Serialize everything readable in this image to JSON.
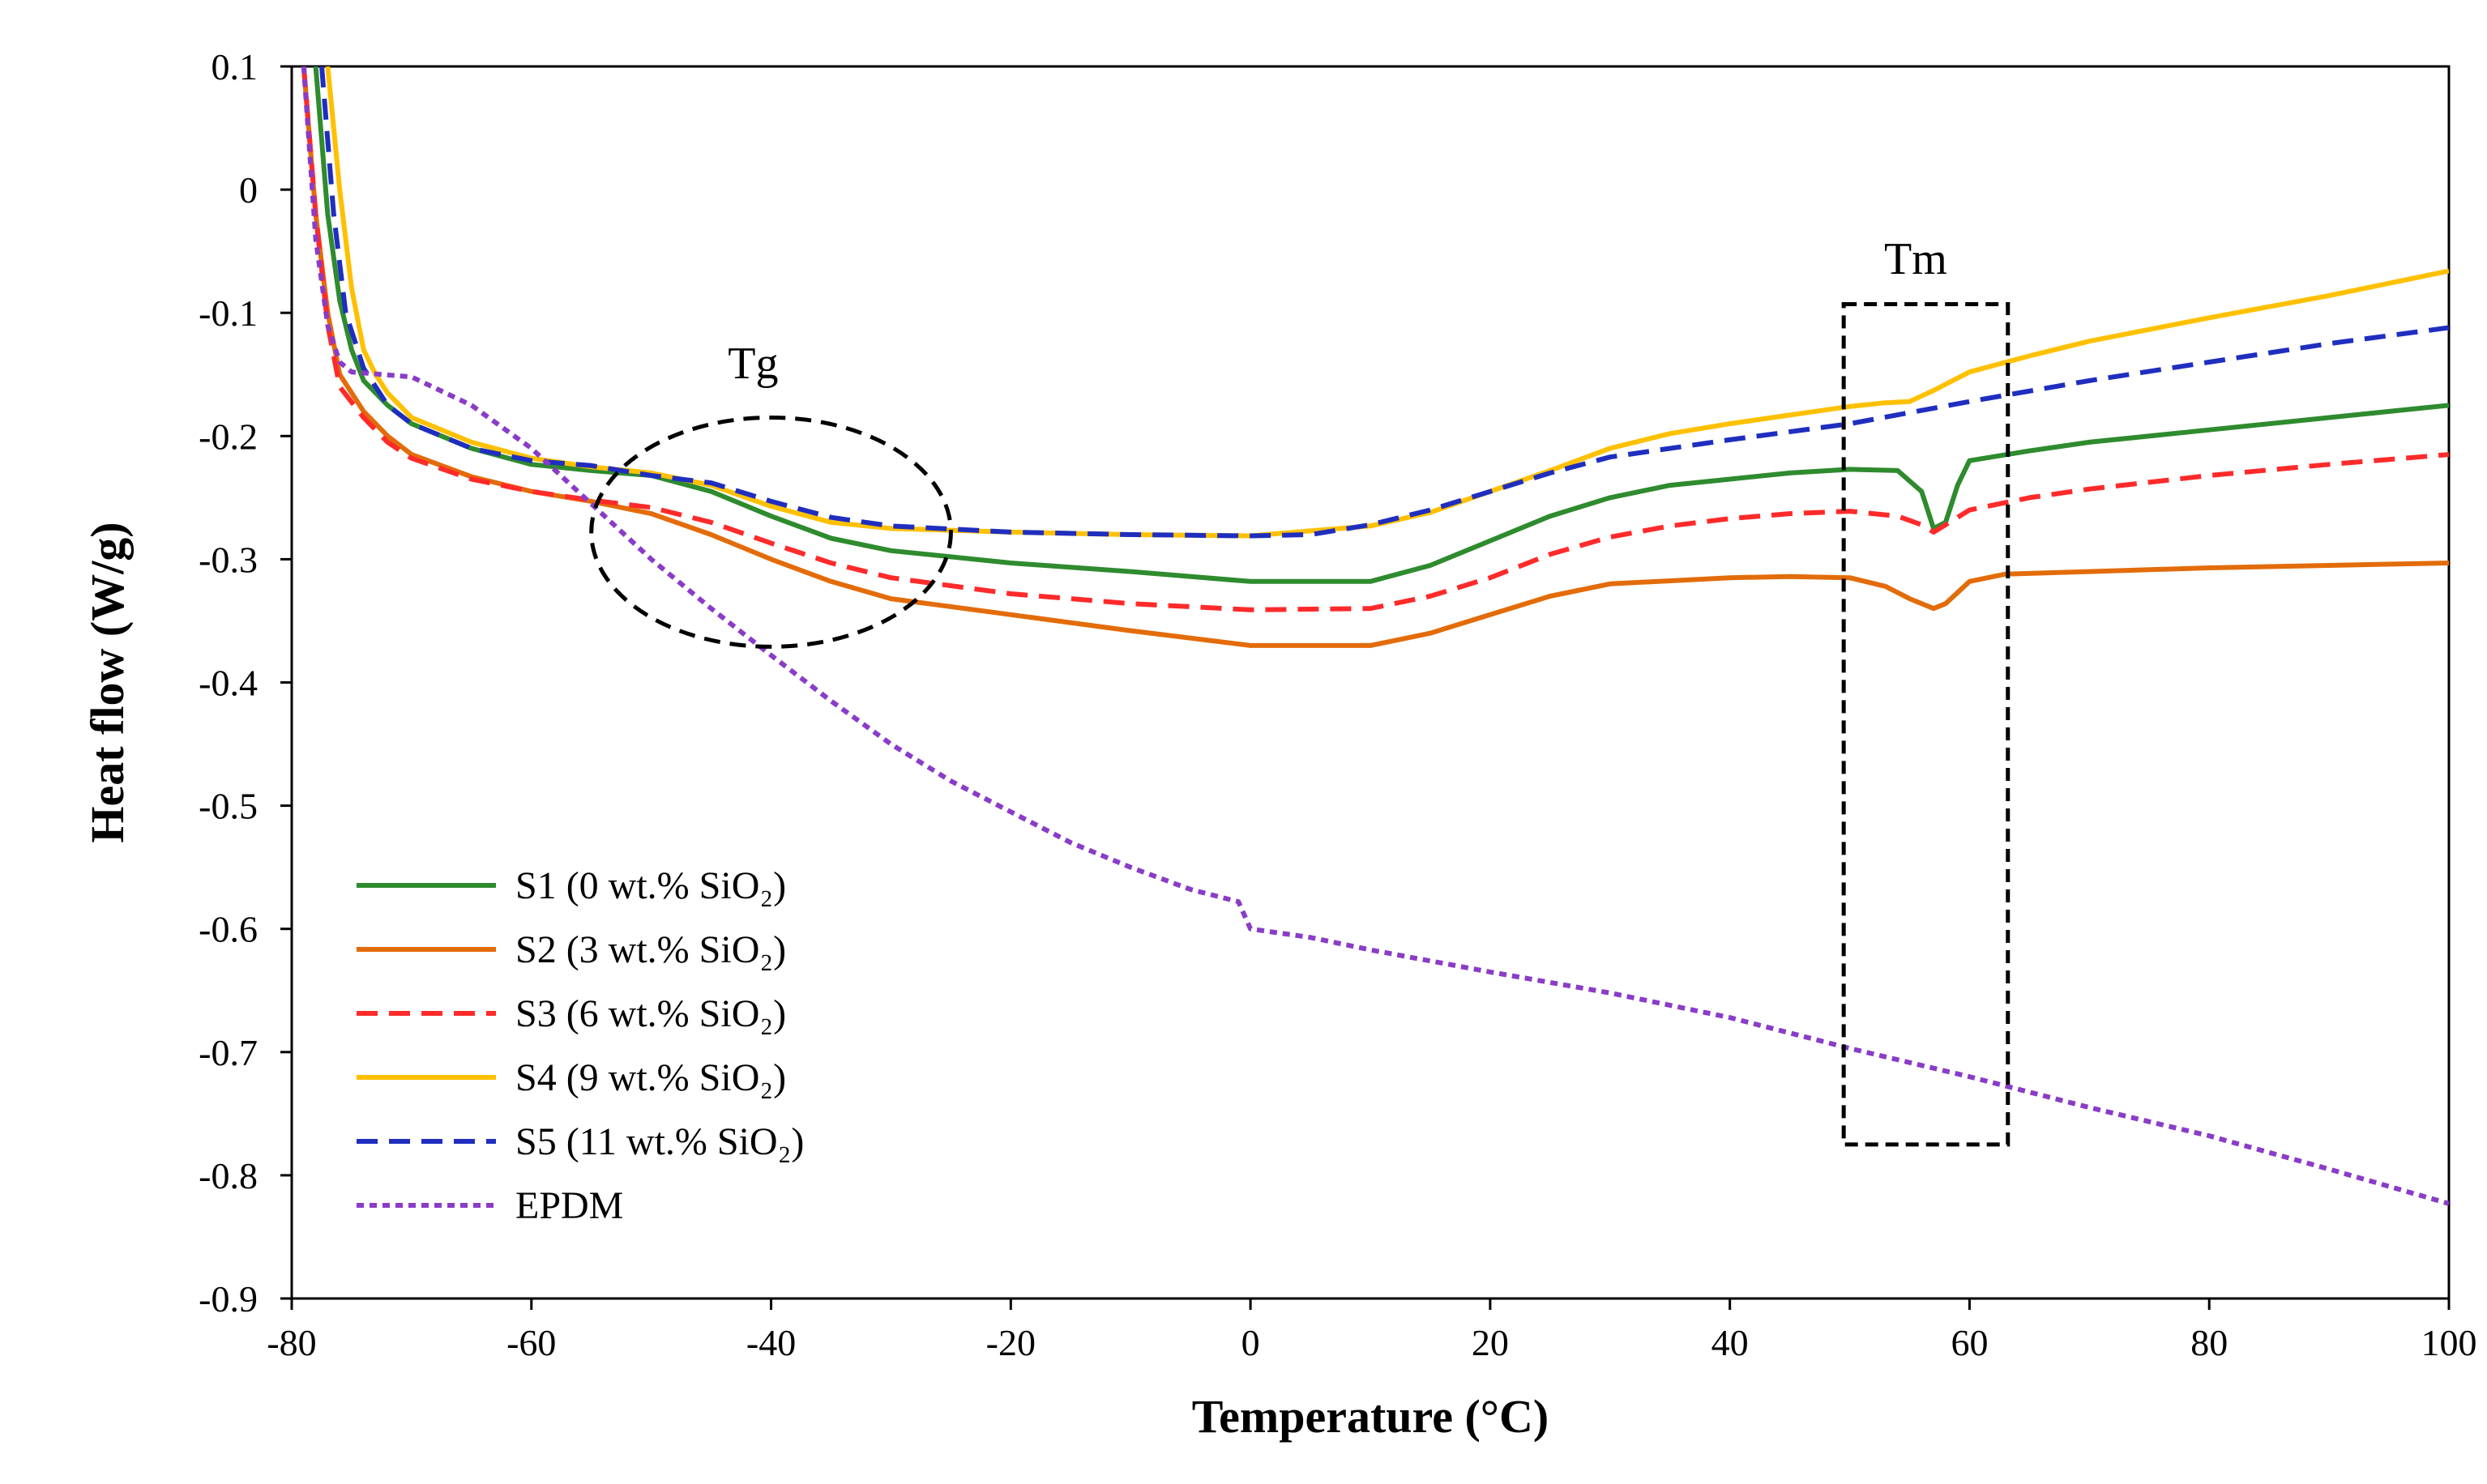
{
  "chart_data": {
    "type": "line",
    "title": "",
    "xlabel": "Temperature (°C)",
    "ylabel": "Heat flow (W/g)",
    "xlim": [
      -80,
      100
    ],
    "ylim": [
      -0.9,
      0.1
    ],
    "x_ticks": [
      -80,
      -60,
      -40,
      -20,
      0,
      20,
      40,
      60,
      80,
      100
    ],
    "y_ticks": [
      0.1,
      0,
      -0.1,
      -0.2,
      -0.3,
      -0.4,
      -0.5,
      -0.6,
      -0.7,
      -0.8,
      -0.9
    ],
    "x_tick_labels": [
      "-80",
      "-60",
      "-40",
      "-20",
      "0",
      "20",
      "40",
      "60",
      "80",
      "100"
    ],
    "y_tick_labels": [
      "0.1",
      "0",
      "-0.1",
      "-0.2",
      "-0.3",
      "-0.4",
      "-0.5",
      "-0.6",
      "-0.7",
      "-0.8",
      "-0.9"
    ],
    "grid": false,
    "legend_position": "bottom-left",
    "series": [
      {
        "name": "S1 (0 wt.% SiO₂)",
        "color": "#2e8b2e",
        "dash": "solid",
        "points": [
          [
            -78,
            0.1
          ],
          [
            -77,
            -0.02
          ],
          [
            -76,
            -0.09
          ],
          [
            -75,
            -0.13
          ],
          [
            -74,
            -0.155
          ],
          [
            -72,
            -0.175
          ],
          [
            -70,
            -0.19
          ],
          [
            -65,
            -0.21
          ],
          [
            -60,
            -0.223
          ],
          [
            -55,
            -0.228
          ],
          [
            -50,
            -0.232
          ],
          [
            -45,
            -0.245
          ],
          [
            -40,
            -0.265
          ],
          [
            -35,
            -0.283
          ],
          [
            -30,
            -0.293
          ],
          [
            -20,
            -0.303
          ],
          [
            -10,
            -0.31
          ],
          [
            0,
            -0.318
          ],
          [
            10,
            -0.318
          ],
          [
            15,
            -0.305
          ],
          [
            20,
            -0.285
          ],
          [
            25,
            -0.265
          ],
          [
            30,
            -0.25
          ],
          [
            35,
            -0.24
          ],
          [
            40,
            -0.235
          ],
          [
            45,
            -0.23
          ],
          [
            50,
            -0.227
          ],
          [
            54,
            -0.228
          ],
          [
            56,
            -0.245
          ],
          [
            57,
            -0.275
          ],
          [
            58,
            -0.27
          ],
          [
            59,
            -0.24
          ],
          [
            60,
            -0.22
          ],
          [
            65,
            -0.212
          ],
          [
            70,
            -0.205
          ],
          [
            80,
            -0.195
          ],
          [
            90,
            -0.185
          ],
          [
            100,
            -0.175
          ]
        ]
      },
      {
        "name": "S2 (3 wt.% SiO₂)",
        "color": "#e36c0a",
        "dash": "solid",
        "points": [
          [
            -79,
            0.1
          ],
          [
            -78,
            -0.02
          ],
          [
            -77,
            -0.1
          ],
          [
            -76,
            -0.15
          ],
          [
            -74,
            -0.18
          ],
          [
            -72,
            -0.2
          ],
          [
            -70,
            -0.215
          ],
          [
            -65,
            -0.233
          ],
          [
            -60,
            -0.245
          ],
          [
            -55,
            -0.253
          ],
          [
            -50,
            -0.263
          ],
          [
            -45,
            -0.28
          ],
          [
            -40,
            -0.3
          ],
          [
            -35,
            -0.318
          ],
          [
            -30,
            -0.332
          ],
          [
            -20,
            -0.345
          ],
          [
            -10,
            -0.358
          ],
          [
            0,
            -0.37
          ],
          [
            10,
            -0.37
          ],
          [
            15,
            -0.36
          ],
          [
            20,
            -0.345
          ],
          [
            25,
            -0.33
          ],
          [
            30,
            -0.32
          ],
          [
            40,
            -0.315
          ],
          [
            45,
            -0.314
          ],
          [
            50,
            -0.315
          ],
          [
            53,
            -0.322
          ],
          [
            55,
            -0.332
          ],
          [
            57,
            -0.34
          ],
          [
            58,
            -0.336
          ],
          [
            59,
            -0.327
          ],
          [
            60,
            -0.318
          ],
          [
            63,
            -0.312
          ],
          [
            70,
            -0.31
          ],
          [
            80,
            -0.307
          ],
          [
            90,
            -0.305
          ],
          [
            100,
            -0.303
          ]
        ]
      },
      {
        "name": "S3 (6 wt.% SiO₂)",
        "color": "#ff2a2a",
        "dash": "dash",
        "points": [
          [
            -79,
            0.1
          ],
          [
            -78,
            -0.02
          ],
          [
            -77,
            -0.11
          ],
          [
            -76,
            -0.16
          ],
          [
            -74,
            -0.185
          ],
          [
            -72,
            -0.205
          ],
          [
            -70,
            -0.218
          ],
          [
            -65,
            -0.235
          ],
          [
            -60,
            -0.245
          ],
          [
            -55,
            -0.252
          ],
          [
            -50,
            -0.258
          ],
          [
            -45,
            -0.27
          ],
          [
            -40,
            -0.287
          ],
          [
            -35,
            -0.303
          ],
          [
            -30,
            -0.315
          ],
          [
            -20,
            -0.328
          ],
          [
            -10,
            -0.336
          ],
          [
            0,
            -0.341
          ],
          [
            10,
            -0.34
          ],
          [
            15,
            -0.33
          ],
          [
            20,
            -0.315
          ],
          [
            25,
            -0.296
          ],
          [
            30,
            -0.282
          ],
          [
            35,
            -0.273
          ],
          [
            40,
            -0.267
          ],
          [
            45,
            -0.263
          ],
          [
            50,
            -0.261
          ],
          [
            54,
            -0.265
          ],
          [
            56,
            -0.272
          ],
          [
            57,
            -0.278
          ],
          [
            58,
            -0.272
          ],
          [
            60,
            -0.26
          ],
          [
            65,
            -0.25
          ],
          [
            70,
            -0.243
          ],
          [
            80,
            -0.232
          ],
          [
            90,
            -0.223
          ],
          [
            100,
            -0.215
          ]
        ]
      },
      {
        "name": "S4 (9 wt.% SiO₂)",
        "color": "#ffc000",
        "dash": "solid",
        "points": [
          [
            -77,
            0.1
          ],
          [
            -76,
            0.0
          ],
          [
            -75,
            -0.08
          ],
          [
            -74,
            -0.13
          ],
          [
            -73,
            -0.15
          ],
          [
            -72,
            -0.165
          ],
          [
            -70,
            -0.185
          ],
          [
            -65,
            -0.205
          ],
          [
            -60,
            -0.218
          ],
          [
            -55,
            -0.225
          ],
          [
            -50,
            -0.23
          ],
          [
            -45,
            -0.24
          ],
          [
            -40,
            -0.257
          ],
          [
            -35,
            -0.27
          ],
          [
            -30,
            -0.275
          ],
          [
            -20,
            -0.278
          ],
          [
            -10,
            -0.28
          ],
          [
            0,
            -0.281
          ],
          [
            10,
            -0.273
          ],
          [
            15,
            -0.262
          ],
          [
            20,
            -0.245
          ],
          [
            25,
            -0.228
          ],
          [
            30,
            -0.21
          ],
          [
            35,
            -0.198
          ],
          [
            40,
            -0.19
          ],
          [
            45,
            -0.183
          ],
          [
            50,
            -0.176
          ],
          [
            53,
            -0.173
          ],
          [
            55,
            -0.172
          ],
          [
            57,
            -0.163
          ],
          [
            60,
            -0.148
          ],
          [
            65,
            -0.135
          ],
          [
            70,
            -0.123
          ],
          [
            80,
            -0.104
          ],
          [
            90,
            -0.086
          ],
          [
            100,
            -0.066
          ]
        ]
      },
      {
        "name": "S5 (11 wt.% SiO₂)",
        "color": "#1f2ebf",
        "dash": "dash",
        "points": [
          [
            -77.5,
            0.1
          ],
          [
            -76.5,
            -0.02
          ],
          [
            -75.5,
            -0.1
          ],
          [
            -74,
            -0.145
          ],
          [
            -72,
            -0.175
          ],
          [
            -70,
            -0.19
          ],
          [
            -65,
            -0.21
          ],
          [
            -60,
            -0.22
          ],
          [
            -55,
            -0.224
          ],
          [
            -50,
            -0.232
          ],
          [
            -45,
            -0.238
          ],
          [
            -40,
            -0.253
          ],
          [
            -35,
            -0.266
          ],
          [
            -30,
            -0.273
          ],
          [
            -20,
            -0.278
          ],
          [
            -10,
            -0.28
          ],
          [
            0,
            -0.281
          ],
          [
            5,
            -0.28
          ],
          [
            10,
            -0.272
          ],
          [
            15,
            -0.26
          ],
          [
            20,
            -0.245
          ],
          [
            25,
            -0.23
          ],
          [
            30,
            -0.217
          ],
          [
            40,
            -0.203
          ],
          [
            50,
            -0.19
          ],
          [
            60,
            -0.172
          ],
          [
            70,
            -0.155
          ],
          [
            80,
            -0.14
          ],
          [
            90,
            -0.125
          ],
          [
            100,
            -0.112
          ]
        ]
      },
      {
        "name": "EPDM",
        "color": "#8a3cc8",
        "dash": "dot",
        "points": [
          [
            -79,
            0.1
          ],
          [
            -78,
            -0.04
          ],
          [
            -77,
            -0.11
          ],
          [
            -76,
            -0.14
          ],
          [
            -75,
            -0.148
          ],
          [
            -70,
            -0.152
          ],
          [
            -65,
            -0.175
          ],
          [
            -60,
            -0.21
          ],
          [
            -55,
            -0.255
          ],
          [
            -50,
            -0.3
          ],
          [
            -45,
            -0.34
          ],
          [
            -40,
            -0.378
          ],
          [
            -35,
            -0.415
          ],
          [
            -30,
            -0.45
          ],
          [
            -25,
            -0.48
          ],
          [
            -20,
            -0.505
          ],
          [
            -15,
            -0.53
          ],
          [
            -10,
            -0.55
          ],
          [
            -5,
            -0.568
          ],
          [
            -1,
            -0.578
          ],
          [
            0,
            -0.6
          ],
          [
            5,
            -0.607
          ],
          [
            10,
            -0.617
          ],
          [
            20,
            -0.635
          ],
          [
            30,
            -0.652
          ],
          [
            40,
            -0.672
          ],
          [
            50,
            -0.697
          ],
          [
            60,
            -0.72
          ],
          [
            70,
            -0.745
          ],
          [
            80,
            -0.768
          ],
          [
            90,
            -0.795
          ],
          [
            100,
            -0.823
          ]
        ]
      }
    ],
    "annotations": [
      {
        "text": "Tg",
        "shape": "ellipse",
        "cx": -40,
        "cy": -0.278,
        "rx": 15,
        "ry": 0.093,
        "label_x": -41.5,
        "label_y": -0.14
      },
      {
        "text": "Tm",
        "shape": "rectangle",
        "x0": 49.5,
        "x1": 63.2,
        "y0": -0.093,
        "y1": -0.775,
        "label_x": 55.5,
        "label_y": -0.055
      }
    ]
  }
}
